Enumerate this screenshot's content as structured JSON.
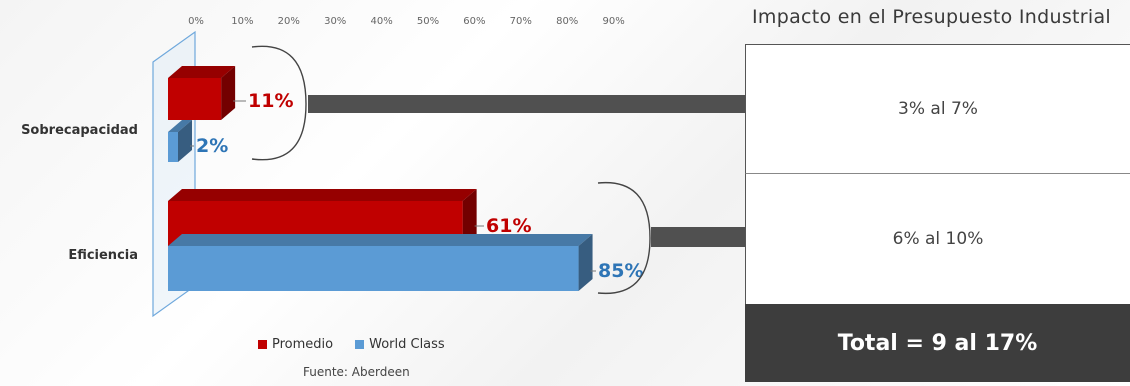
{
  "chart_data": {
    "type": "bar",
    "orientation": "horizontal",
    "three_d": true,
    "categories": [
      "Sobrecapacidad",
      "Eficiencia"
    ],
    "series": [
      {
        "name": "Promedio",
        "color": "#c00000",
        "values": [
          11,
          61
        ],
        "labels": [
          "11%",
          "61%"
        ]
      },
      {
        "name": "World Class",
        "color": "#5b9bd5",
        "values": [
          2,
          85
        ],
        "labels": [
          "2%",
          "85%"
        ]
      }
    ],
    "x_ticks": [
      "0%",
      "10%",
      "20%",
      "30%",
      "40%",
      "50%",
      "60%",
      "70%",
      "80%",
      "90%"
    ],
    "xlim": [
      0,
      90
    ],
    "legend": "bottom",
    "grid": false
  },
  "panel": {
    "title": "Impacto en el Presupuesto Industrial",
    "impacts": [
      "3% al 7%",
      "6% al 10%"
    ],
    "total": "Total = 9 al 17%"
  },
  "source": "Fuente: Aberdeen",
  "colors": {
    "arrow": "#505050",
    "total_bg": "#3d3d3d"
  }
}
